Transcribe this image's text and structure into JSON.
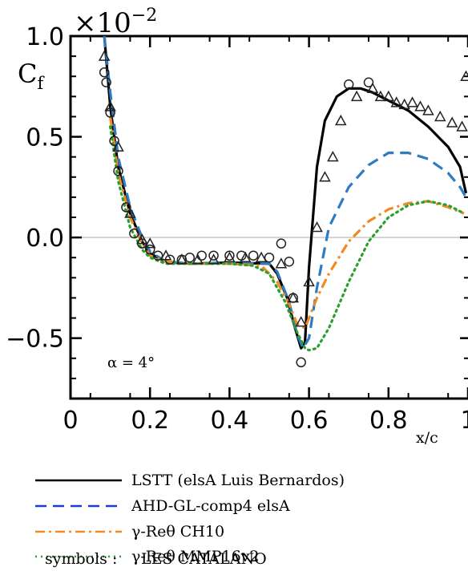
{
  "chart_data": {
    "type": "line",
    "title": "",
    "xlabel": "x/c",
    "ylabel": "C",
    "ylabel_sub": "f",
    "y_multiplier_base": "×10",
    "y_multiplier_exp": "−2",
    "xlim": [
      0,
      1.0
    ],
    "ylim": [
      -0.8,
      1.0
    ],
    "x_ticks": [
      0,
      0.2,
      0.4,
      0.6,
      0.8,
      1.0
    ],
    "x_tick_labels": [
      "0",
      "0.2",
      "0.4",
      "0.6",
      "0.8",
      "1"
    ],
    "y_ticks": [
      -0.5,
      0.0,
      0.5,
      1.0
    ],
    "y_tick_labels": [
      "−0.5",
      "0.0",
      "0.5",
      "1.0"
    ],
    "zero_line": true,
    "grid": false,
    "annotation": "α = 4°",
    "legend_position": "below",
    "series": [
      {
        "name": "LSTT (elsA Luis Bernardos)",
        "style": "solid",
        "color": "#000000",
        "x": [
          0.085,
          0.1,
          0.12,
          0.15,
          0.18,
          0.2,
          0.24,
          0.3,
          0.4,
          0.5,
          0.52,
          0.545,
          0.565,
          0.58,
          0.59,
          0.6,
          0.62,
          0.64,
          0.67,
          0.7,
          0.73,
          0.76,
          0.8,
          0.85,
          0.9,
          0.95,
          0.98,
          0.995
        ],
        "y": [
          1.0,
          0.65,
          0.35,
          0.12,
          -0.02,
          -0.08,
          -0.12,
          -0.13,
          -0.125,
          -0.13,
          -0.18,
          -0.3,
          -0.45,
          -0.55,
          -0.52,
          -0.15,
          0.35,
          0.58,
          0.7,
          0.74,
          0.74,
          0.72,
          0.68,
          0.63,
          0.55,
          0.45,
          0.35,
          0.22
        ]
      },
      {
        "name": "AHD-GL-comp4 elsA",
        "style": "dashed",
        "color": "#2e7bc4",
        "x": [
          0.085,
          0.1,
          0.12,
          0.15,
          0.18,
          0.2,
          0.24,
          0.3,
          0.4,
          0.5,
          0.52,
          0.55,
          0.57,
          0.585,
          0.6,
          0.62,
          0.65,
          0.7,
          0.75,
          0.8,
          0.85,
          0.9,
          0.95,
          0.98,
          0.995
        ],
        "y": [
          1.0,
          0.72,
          0.4,
          0.15,
          0.0,
          -0.07,
          -0.12,
          -0.13,
          -0.125,
          -0.13,
          -0.17,
          -0.32,
          -0.48,
          -0.55,
          -0.5,
          -0.25,
          0.05,
          0.25,
          0.36,
          0.42,
          0.42,
          0.39,
          0.32,
          0.25,
          0.2
        ]
      },
      {
        "name": "γ-Reθ CH10",
        "style": "dashdot",
        "color": "#f08a24",
        "x": [
          0.1,
          0.12,
          0.15,
          0.18,
          0.2,
          0.24,
          0.3,
          0.4,
          0.48,
          0.52,
          0.55,
          0.57,
          0.59,
          0.6,
          0.62,
          0.65,
          0.7,
          0.75,
          0.8,
          0.85,
          0.9,
          0.95,
          0.99
        ],
        "y": [
          0.6,
          0.32,
          0.1,
          -0.03,
          -0.09,
          -0.12,
          -0.13,
          -0.13,
          -0.14,
          -0.22,
          -0.33,
          -0.43,
          -0.45,
          -0.4,
          -0.3,
          -0.18,
          -0.02,
          0.08,
          0.14,
          0.17,
          0.18,
          0.15,
          0.12
        ]
      },
      {
        "name": "γ-Reθ MMP16v2",
        "style": "dotted",
        "color": "#2ca02c",
        "x": [
          0.1,
          0.12,
          0.15,
          0.18,
          0.2,
          0.24,
          0.3,
          0.4,
          0.46,
          0.5,
          0.54,
          0.57,
          0.59,
          0.6,
          0.62,
          0.65,
          0.7,
          0.75,
          0.8,
          0.85,
          0.9,
          0.95,
          0.99
        ],
        "y": [
          0.55,
          0.28,
          0.05,
          -0.06,
          -0.1,
          -0.13,
          -0.13,
          -0.13,
          -0.14,
          -0.18,
          -0.32,
          -0.47,
          -0.55,
          -0.56,
          -0.55,
          -0.45,
          -0.22,
          -0.02,
          0.1,
          0.16,
          0.18,
          0.16,
          0.12
        ]
      }
    ],
    "symbol_series": [
      {
        "name": "LES CATALANO (circles)",
        "marker": "circle",
        "x": [
          0.085,
          0.09,
          0.1,
          0.11,
          0.12,
          0.14,
          0.16,
          0.18,
          0.2,
          0.22,
          0.25,
          0.28,
          0.3,
          0.33,
          0.36,
          0.4,
          0.43,
          0.46,
          0.5,
          0.53,
          0.55,
          0.56,
          0.58,
          0.7,
          0.75
        ],
        "y": [
          0.82,
          0.77,
          0.62,
          0.48,
          0.33,
          0.15,
          0.02,
          -0.03,
          -0.06,
          -0.09,
          -0.11,
          -0.11,
          -0.1,
          -0.09,
          -0.09,
          -0.09,
          -0.09,
          -0.09,
          -0.1,
          -0.03,
          -0.12,
          -0.3,
          -0.62,
          0.76,
          0.77
        ]
      },
      {
        "name": "LES CATALANO (triangles)",
        "marker": "triangle",
        "x": [
          0.085,
          0.1,
          0.12,
          0.15,
          0.18,
          0.2,
          0.24,
          0.28,
          0.32,
          0.36,
          0.4,
          0.44,
          0.48,
          0.53,
          0.56,
          0.58,
          0.6,
          0.62,
          0.64,
          0.66,
          0.68,
          0.72,
          0.76,
          0.78,
          0.8,
          0.82,
          0.84,
          0.86,
          0.88,
          0.9,
          0.93,
          0.96,
          0.985,
          0.995
        ],
        "y": [
          0.9,
          0.65,
          0.45,
          0.12,
          -0.01,
          -0.03,
          -0.09,
          -0.11,
          -0.11,
          -0.11,
          -0.1,
          -0.1,
          -0.1,
          -0.13,
          -0.3,
          -0.42,
          -0.22,
          0.05,
          0.3,
          0.4,
          0.58,
          0.7,
          0.74,
          0.7,
          0.7,
          0.67,
          0.66,
          0.67,
          0.65,
          0.63,
          0.6,
          0.57,
          0.55,
          0.8
        ]
      }
    ]
  },
  "legend": {
    "items": [
      {
        "label": "LSTT (elsA Luis Bernardos)",
        "style": "solid",
        "color": "#000000"
      },
      {
        "label": "AHD-GL-comp4 elsA",
        "style": "dashed",
        "color": "#1f3bd6"
      },
      {
        "label": "γ-Reθ    CH10",
        "style": "dashdot",
        "color": "#f08a24"
      },
      {
        "label": "γ-Reθ      MMP16v2",
        "style": "dotted",
        "color": "#2ca02c"
      }
    ],
    "symbols_prefix": "symbols :",
    "symbols_label": "LES CATALANO"
  }
}
